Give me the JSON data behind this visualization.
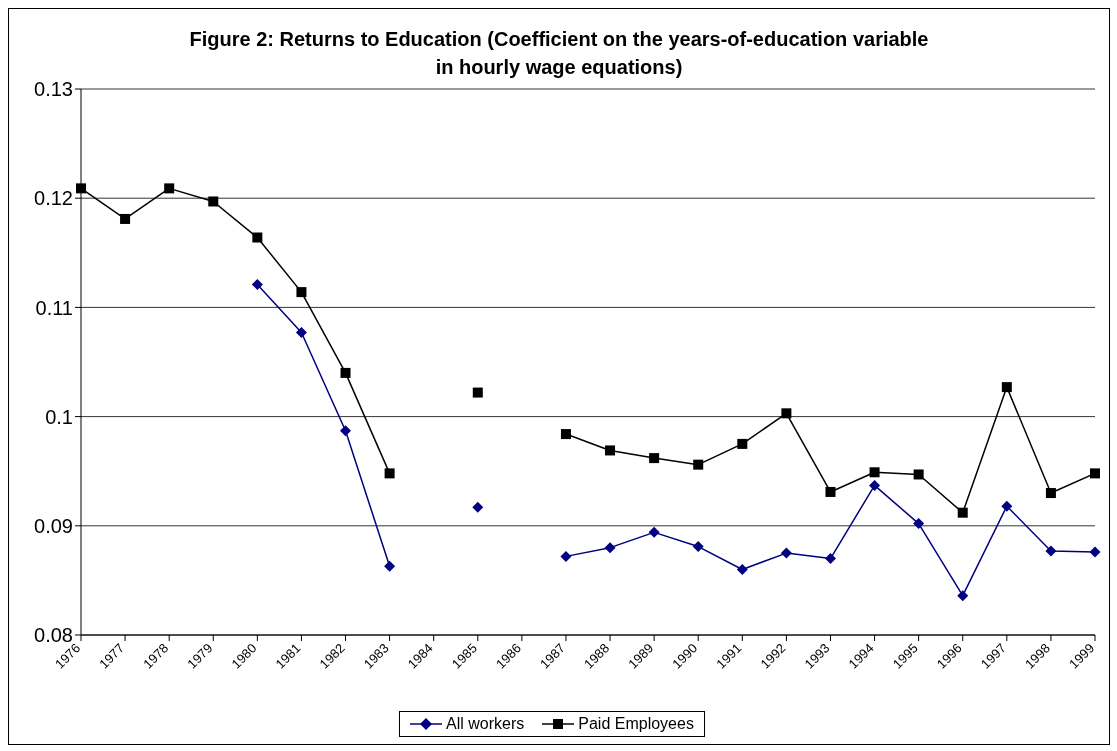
{
  "chart_data": {
    "type": "line",
    "title": "Figure 2: Returns to Education (Coefficient on the years-of-education variable in hourly wage equations)",
    "categories": [
      "1976",
      "1977",
      "1978",
      "1979",
      "1980",
      "1981",
      "1982",
      "1983",
      "1984",
      "1985",
      "1986",
      "1987",
      "1988",
      "1989",
      "1990",
      "1991",
      "1992",
      "1993",
      "1994",
      "1995",
      "1996",
      "1997",
      "1998",
      "1999"
    ],
    "series": [
      {
        "name": "All workers",
        "color": "#000080",
        "marker": "diamond",
        "values": [
          null,
          null,
          null,
          null,
          0.1121,
          0.1077,
          0.0987,
          0.0863,
          null,
          0.0917,
          null,
          0.0872,
          0.088,
          0.0894,
          0.0881,
          0.086,
          0.0875,
          0.087,
          0.0937,
          0.0902,
          0.0836,
          0.0918,
          0.0877,
          0.0876
        ]
      },
      {
        "name": "Paid Employees",
        "color": "#000000",
        "marker": "square",
        "values": [
          0.1209,
          0.1181,
          0.1209,
          0.1197,
          0.1164,
          0.1114,
          0.104,
          0.0948,
          null,
          0.1022,
          null,
          0.0984,
          0.0969,
          0.0962,
          0.0956,
          0.0975,
          0.1003,
          0.0931,
          0.0949,
          0.0947,
          0.0912,
          0.1027,
          0.093,
          0.0948
        ]
      }
    ],
    "ylim": [
      0.08,
      0.13
    ],
    "yticks": [
      0.08,
      0.09,
      0.1,
      0.11,
      0.12,
      0.13
    ],
    "grid": "y",
    "legend": "bottom"
  }
}
